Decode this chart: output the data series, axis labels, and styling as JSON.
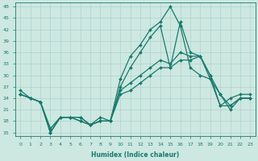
{
  "xlabel": "Humidex (Indice chaleur)",
  "background_color": "#cce8e0",
  "grid_color": "#aacccc",
  "line_color": "#1a7a6e",
  "x_ticks": [
    0,
    1,
    2,
    3,
    4,
    5,
    6,
    7,
    8,
    9,
    10,
    11,
    12,
    13,
    14,
    15,
    16,
    17,
    18,
    19,
    20,
    21,
    22,
    23
  ],
  "y_ticks": [
    15,
    18,
    21,
    24,
    27,
    30,
    33,
    36,
    39,
    42,
    45,
    48
  ],
  "ylim": [
    14,
    49
  ],
  "xlim": [
    -0.5,
    23.5
  ],
  "series": [
    {
      "x": [
        0,
        1,
        2,
        3,
        4,
        5,
        6,
        7,
        8,
        9,
        10,
        11,
        12,
        13,
        14,
        15,
        16,
        17,
        18,
        19,
        20,
        21,
        22,
        23
      ],
      "y": [
        26,
        24,
        23,
        15,
        19,
        19,
        19,
        17,
        19,
        18,
        29,
        35,
        38,
        42,
        44,
        48,
        43,
        32,
        30,
        29,
        22,
        24,
        25,
        25
      ]
    },
    {
      "x": [
        0,
        1,
        2,
        3,
        4,
        5,
        6,
        7,
        8,
        9,
        10,
        11,
        12,
        13,
        14,
        15,
        16,
        17,
        18,
        19,
        20,
        21,
        22,
        23
      ],
      "y": [
        25,
        24,
        23,
        15,
        19,
        19,
        19,
        17,
        18,
        18,
        27,
        32,
        36,
        40,
        43,
        32,
        44,
        36,
        35,
        30,
        22,
        22,
        24,
        24
      ]
    },
    {
      "x": [
        0,
        1,
        2,
        3,
        4,
        5,
        6,
        7,
        8,
        9,
        10,
        11,
        12,
        13,
        14,
        15,
        16,
        17,
        18,
        19,
        20,
        21,
        22,
        23
      ],
      "y": [
        25,
        24,
        23,
        16,
        19,
        19,
        18,
        17,
        18,
        18,
        26,
        28,
        30,
        32,
        34,
        33,
        36,
        35,
        35,
        30,
        25,
        22,
        24,
        24
      ]
    },
    {
      "x": [
        0,
        1,
        2,
        3,
        4,
        5,
        6,
        7,
        8,
        9,
        10,
        11,
        12,
        13,
        14,
        15,
        16,
        17,
        18,
        19,
        20,
        21,
        22,
        23
      ],
      "y": [
        25,
        24,
        23,
        16,
        19,
        19,
        18,
        17,
        18,
        18,
        25,
        26,
        28,
        30,
        32,
        32,
        34,
        34,
        35,
        29,
        25,
        21,
        24,
        24
      ]
    }
  ],
  "markersize": 2.0,
  "linewidth": 0.9
}
